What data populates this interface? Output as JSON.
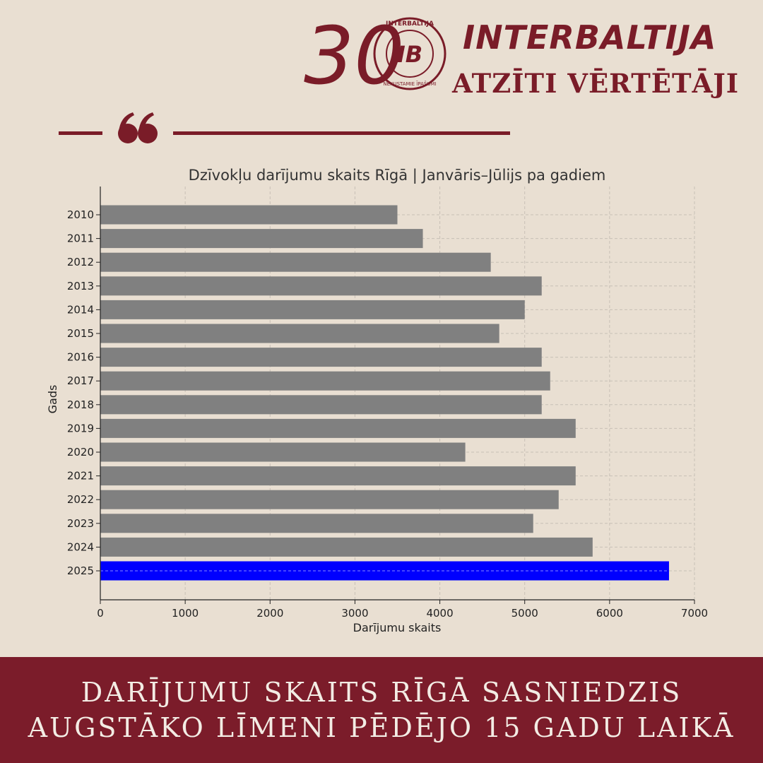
{
  "brand": {
    "badge_number": "30",
    "logo_text_top": "INTERBALTIJA",
    "logo_text_bottom": "NEKUSTAMIE ĪPAŠUMI",
    "logo_monogram": "IB",
    "name": "INTERBALTIJA",
    "tagline": "ATZĪTI VĒRTĒTĀJI",
    "color": "#7a1c28"
  },
  "decoration": {
    "icon": "quote-icon"
  },
  "chart_data": {
    "type": "bar",
    "orientation": "horizontal",
    "title": "Dzīvokļu darījumu skaits Rīgā | Janvāris–Jūlijs pa gadiem",
    "xlabel": "Darījumu skaits",
    "ylabel": "Gads",
    "categories": [
      "2010",
      "2011",
      "2012",
      "2013",
      "2014",
      "2015",
      "2016",
      "2017",
      "2018",
      "2019",
      "2020",
      "2021",
      "2022",
      "2023",
      "2024",
      "2025"
    ],
    "values": [
      3500,
      3800,
      4600,
      5200,
      5000,
      4700,
      5200,
      5300,
      5200,
      5600,
      4300,
      5600,
      5400,
      5100,
      5800,
      6700
    ],
    "xlim": [
      0,
      7000
    ],
    "xticks": [
      0,
      1000,
      2000,
      3000,
      4000,
      5000,
      6000,
      7000
    ],
    "grid": true,
    "bar_color": "#808080",
    "highlight_category": "2025",
    "highlight_color": "#0000ff"
  },
  "footer": {
    "line1": "Darījumu skaits Rīgā sasniedzis",
    "line2": "augstāko līmeni pēdējo 15 gadu laikā"
  }
}
